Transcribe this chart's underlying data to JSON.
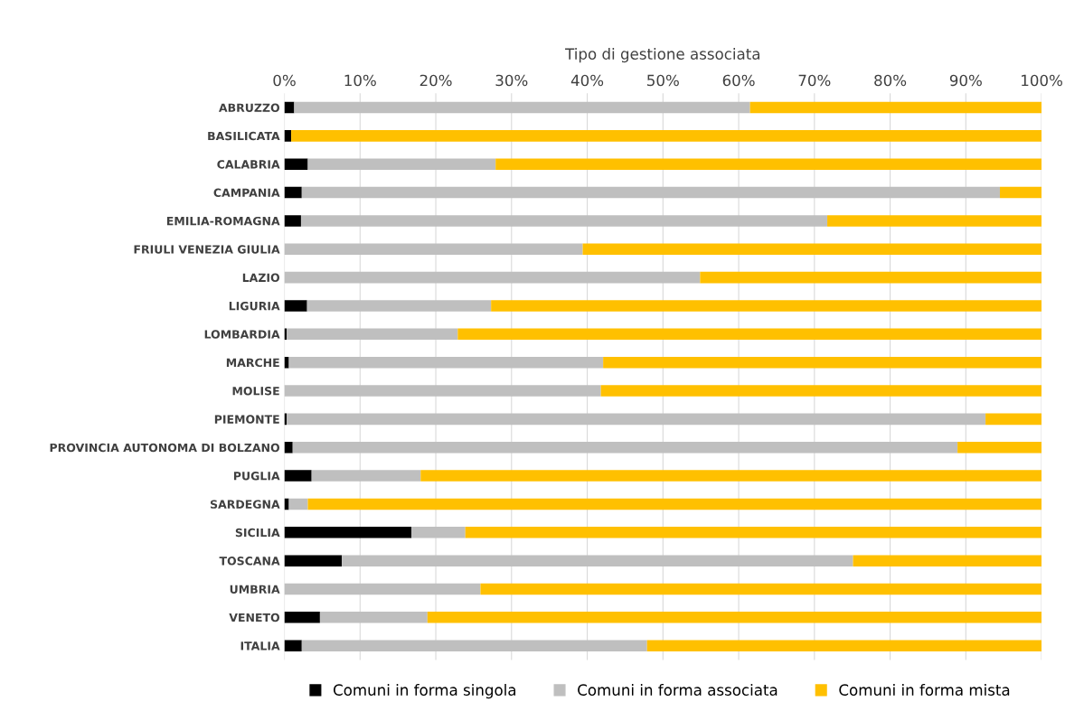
{
  "chart_data": {
    "type": "bar",
    "orientation": "horizontal",
    "stacked": true,
    "xlabel": "Tipo di gestione associata",
    "categories": [
      "ABRUZZO",
      "BASILICATA",
      "CALABRIA",
      "CAMPANIA",
      "EMILIA-ROMAGNA",
      "FRIULI VENEZIA GIULIA",
      "LAZIO",
      "LIGURIA",
      "LOMBARDIA",
      "MARCHE",
      "MOLISE",
      "PIEMONTE",
      "PROVINCIA AUTONOMA DI BOLZANO",
      "PUGLIA",
      "SARDEGNA",
      "SICILIA",
      "TOSCANA",
      "UMBRIA",
      "VENETO",
      "ITALIA"
    ],
    "series": [
      {
        "name": "Comuni in forma singola",
        "color": "#000000",
        "values": [
          1.3,
          0.9,
          3.1,
          2.3,
          2.2,
          0,
          0,
          3.0,
          0.3,
          0.6,
          0,
          0.3,
          1.1,
          3.6,
          0.6,
          16.8,
          7.6,
          0,
          4.7,
          2.3
        ]
      },
      {
        "name": "Comuni in forma associata",
        "color": "#bfbfbf",
        "values": [
          60.2,
          0,
          24.8,
          92.2,
          69.5,
          39.4,
          54.9,
          24.3,
          22.6,
          41.5,
          41.8,
          92.3,
          87.8,
          14.4,
          2.5,
          7.1,
          67.5,
          25.9,
          14.2,
          45.6
        ]
      },
      {
        "name": "Comuni in forma mista",
        "color": "#ffc000",
        "values": [
          38.5,
          99.1,
          72.1,
          5.5,
          28.3,
          60.6,
          45.1,
          72.7,
          77.1,
          57.9,
          58.2,
          7.4,
          11.1,
          82.0,
          96.9,
          76.1,
          24.9,
          74.1,
          81.1,
          52.1
        ]
      }
    ],
    "xlim": [
      0,
      100
    ],
    "xticks": [
      {
        "value": 0,
        "label": "0%"
      },
      {
        "value": 10,
        "label": "10%"
      },
      {
        "value": 20,
        "label": "20%"
      },
      {
        "value": 30,
        "label": "30%"
      },
      {
        "value": 40,
        "label": "40%"
      },
      {
        "value": 50,
        "label": "50%"
      },
      {
        "value": 60,
        "label": "60%"
      },
      {
        "value": 70,
        "label": "70%"
      },
      {
        "value": 80,
        "label": "80%"
      },
      {
        "value": 90,
        "label": "90%"
      },
      {
        "value": 100,
        "label": "100%"
      }
    ],
    "grid": "x",
    "legend": "bottom"
  }
}
